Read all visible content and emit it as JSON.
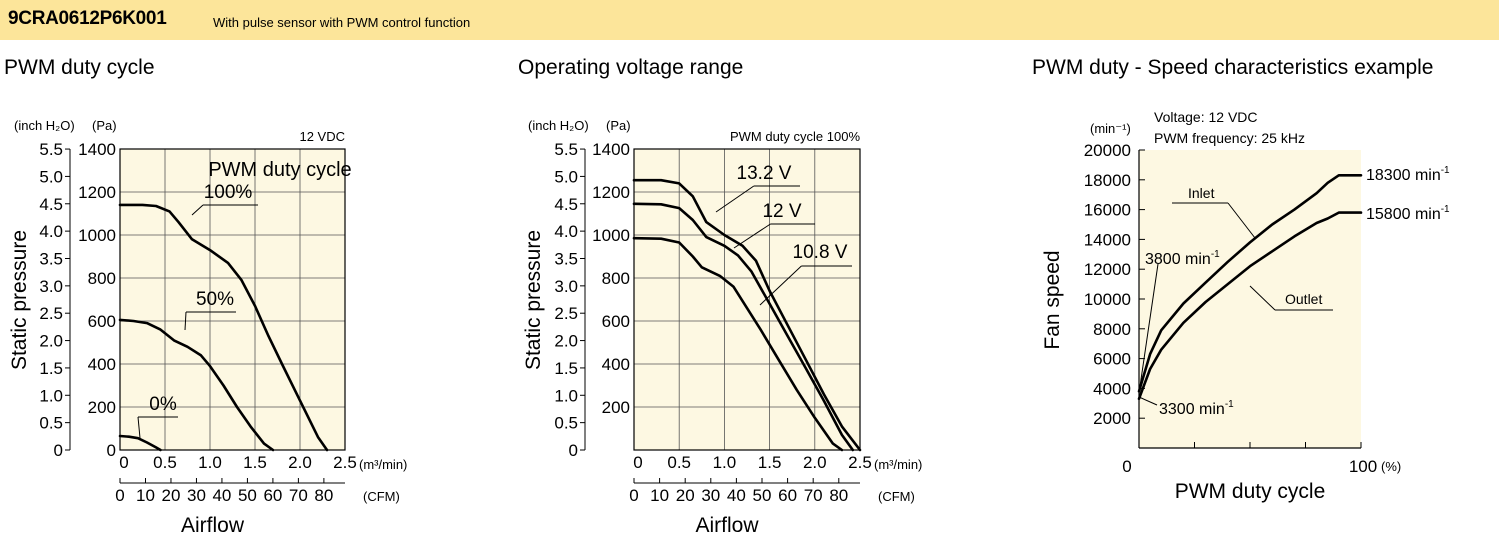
{
  "header": {
    "model": "9CRA0612P6K001",
    "description": "With pulse sensor with PWM control function",
    "accent_color": "#fce59a"
  },
  "chart_data": [
    {
      "type": "line",
      "title": "PWM duty cycle",
      "xlabel": "Airflow",
      "ylabel": "Static pressure",
      "x_unit": "(m³/min)",
      "x2_unit": "(CFM)",
      "y_unit_left": "(inch H₂O)",
      "y_unit_right": "(Pa)",
      "note": "12 VDC",
      "legend_title": "PWM duty cycle",
      "xlim": [
        0,
        2.5
      ],
      "ylim": [
        0,
        1400
      ],
      "x_ticks": [
        "0",
        "0.5",
        "1.0",
        "1.5",
        "2.0",
        "2.5"
      ],
      "y_ticks": [
        "0",
        "200",
        "400",
        "600",
        "800",
        "1000",
        "1200",
        "1400"
      ],
      "y2_ticks": [
        "0",
        "0.5",
        "1.0",
        "1.5",
        "2.0",
        "2.5",
        "3.0",
        "3.5",
        "4.0",
        "4.5",
        "5.0",
        "5.5"
      ],
      "cfm_ticks": [
        "0",
        "10",
        "20",
        "30",
        "40",
        "50",
        "60",
        "70",
        "80"
      ],
      "series": [
        {
          "label": "100%",
          "x": [
            0,
            0.25,
            0.4,
            0.55,
            0.65,
            0.8,
            1.0,
            1.2,
            1.35,
            1.5,
            1.65,
            1.8,
            2.0,
            2.2,
            2.3
          ],
          "y": [
            1140,
            1140,
            1135,
            1110,
            1060,
            980,
            930,
            870,
            790,
            670,
            530,
            400,
            230,
            60,
            0
          ]
        },
        {
          "label": "50%",
          "x": [
            0,
            0.15,
            0.3,
            0.45,
            0.6,
            0.75,
            0.9,
            1.0,
            1.15,
            1.3,
            1.45,
            1.6,
            1.7
          ],
          "y": [
            605,
            600,
            590,
            560,
            510,
            480,
            440,
            390,
            300,
            200,
            110,
            30,
            0
          ]
        },
        {
          "label": "0%",
          "x": [
            0,
            0.1,
            0.2,
            0.3,
            0.4,
            0.45
          ],
          "y": [
            65,
            62,
            55,
            35,
            12,
            0
          ]
        }
      ]
    },
    {
      "type": "line",
      "title": "Operating voltage range",
      "xlabel": "Airflow",
      "ylabel": "Static pressure",
      "x_unit": "(m³/min)",
      "x2_unit": "(CFM)",
      "y_unit_left": "(inch H₂O)",
      "y_unit_right": "(Pa)",
      "note": "PWM duty cycle 100%",
      "xlim": [
        0,
        2.5
      ],
      "ylim": [
        0,
        1400
      ],
      "x_ticks": [
        "0.5",
        "1.0",
        "1.5",
        "2.0",
        "2.5"
      ],
      "x_origin_label": "0",
      "y_ticks": [
        "200",
        "400",
        "600",
        "800",
        "1000",
        "1200",
        "1400"
      ],
      "y2_ticks": [
        "0",
        "0.5",
        "1.0",
        "1.5",
        "2.0",
        "2.5",
        "3.0",
        "3.5",
        "4.0",
        "4.5",
        "5.0",
        "5.5"
      ],
      "cfm_ticks": [
        "0",
        "10",
        "20",
        "30",
        "40",
        "50",
        "60",
        "70",
        "80"
      ],
      "series": [
        {
          "label": "13.2 V",
          "x": [
            0,
            0.3,
            0.5,
            0.65,
            0.8,
            1.0,
            1.2,
            1.35,
            1.5,
            1.7,
            1.9,
            2.1,
            2.3,
            2.5
          ],
          "y": [
            1255,
            1255,
            1240,
            1180,
            1060,
            1000,
            950,
            880,
            740,
            580,
            420,
            260,
            110,
            0
          ]
        },
        {
          "label": "12 V",
          "x": [
            0,
            0.3,
            0.5,
            0.65,
            0.8,
            1.0,
            1.15,
            1.3,
            1.5,
            1.7,
            1.9,
            2.1,
            2.3,
            2.42
          ],
          "y": [
            1145,
            1143,
            1125,
            1070,
            990,
            950,
            905,
            830,
            680,
            530,
            380,
            230,
            70,
            0
          ]
        },
        {
          "label": "10.8 V",
          "x": [
            0,
            0.3,
            0.5,
            0.65,
            0.75,
            0.95,
            1.1,
            1.25,
            1.4,
            1.6,
            1.8,
            2.0,
            2.2,
            2.3
          ],
          "y": [
            985,
            983,
            965,
            900,
            850,
            810,
            760,
            660,
            560,
            420,
            280,
            150,
            30,
            0
          ]
        }
      ]
    },
    {
      "type": "line",
      "title": "PWM duty - Speed characteristics example",
      "xlabel": "PWM duty cycle",
      "ylabel": "Fan speed",
      "y_unit": "(min⁻¹)",
      "x_unit": "(%)",
      "notes": [
        "Voltage: 12 VDC",
        "PWM frequency: 25 kHz"
      ],
      "xlim": [
        0,
        100
      ],
      "ylim": [
        0,
        20000
      ],
      "x_tick_labels": [
        "0",
        "100"
      ],
      "y_ticks": [
        "2000",
        "4000",
        "6000",
        "8000",
        "10000",
        "12000",
        "14000",
        "16000",
        "18000",
        "20000"
      ],
      "series": [
        {
          "label": "Inlet",
          "x": [
            0,
            5,
            10,
            20,
            30,
            40,
            50,
            60,
            70,
            80,
            85,
            90,
            100
          ],
          "y": [
            3800,
            6300,
            7900,
            9700,
            11100,
            12500,
            13800,
            15000,
            16000,
            17100,
            17800,
            18300,
            18300
          ]
        },
        {
          "label": "Outlet",
          "x": [
            0,
            5,
            10,
            20,
            30,
            40,
            50,
            60,
            70,
            80,
            85,
            90,
            100
          ],
          "y": [
            3300,
            5300,
            6600,
            8400,
            9800,
            11000,
            12200,
            13200,
            14200,
            15100,
            15400,
            15800,
            15800
          ]
        }
      ],
      "annotations": [
        "3800 min⁻¹",
        "3300 min⁻¹",
        "18300 min⁻¹",
        "15800 min⁻¹"
      ]
    }
  ]
}
